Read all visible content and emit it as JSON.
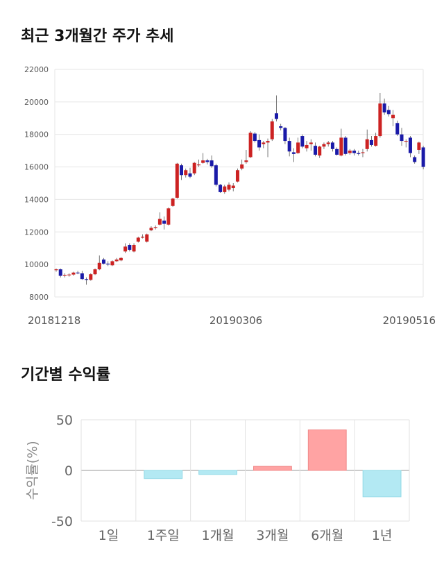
{
  "sections": {
    "price_title": "최근 3개월간 주가 추세",
    "returns_title": "기간별 수익률"
  },
  "colors": {
    "up": "#cc2222",
    "down": "#1a1aa8",
    "positive_bar": "#ffa3a3",
    "negative_bar": "#b3e9f3"
  },
  "chart_data": [
    {
      "type": "candlestick",
      "title": "",
      "ylim": [
        8000,
        22000
      ],
      "y_ticks": [
        "8000",
        "10000",
        "12000",
        "14000",
        "16000",
        "18000",
        "20000",
        "22000"
      ],
      "x_tick_labels": [
        "20181218",
        "20190306",
        "20190516"
      ],
      "x_tick_positions": [
        0,
        36,
        72
      ],
      "grid": true,
      "candles": [
        {
          "o": 9650,
          "h": 9750,
          "l": 9550,
          "c": 9700
        },
        {
          "o": 9700,
          "h": 9750,
          "l": 9200,
          "c": 9300
        },
        {
          "o": 9300,
          "h": 9450,
          "l": 9200,
          "c": 9350
        },
        {
          "o": 9350,
          "h": 9450,
          "l": 9250,
          "c": 9380
        },
        {
          "o": 9380,
          "h": 9550,
          "l": 9300,
          "c": 9500
        },
        {
          "o": 9500,
          "h": 9600,
          "l": 9400,
          "c": 9450
        },
        {
          "o": 9450,
          "h": 9600,
          "l": 9050,
          "c": 9100
        },
        {
          "o": 9100,
          "h": 9200,
          "l": 8750,
          "c": 9050
        },
        {
          "o": 9050,
          "h": 9450,
          "l": 9000,
          "c": 9400
        },
        {
          "o": 9400,
          "h": 9750,
          "l": 9350,
          "c": 9700
        },
        {
          "o": 9700,
          "h": 10550,
          "l": 9650,
          "c": 10100
        },
        {
          "o": 10300,
          "h": 10400,
          "l": 10000,
          "c": 10050
        },
        {
          "o": 10050,
          "h": 10200,
          "l": 9900,
          "c": 10000
        },
        {
          "o": 9950,
          "h": 10250,
          "l": 9900,
          "c": 10200
        },
        {
          "o": 10200,
          "h": 10400,
          "l": 10150,
          "c": 10300
        },
        {
          "o": 10250,
          "h": 10450,
          "l": 10200,
          "c": 10400
        },
        {
          "o": 10800,
          "h": 11300,
          "l": 10700,
          "c": 11100
        },
        {
          "o": 11200,
          "h": 11300,
          "l": 10800,
          "c": 10900
        },
        {
          "o": 10800,
          "h": 11300,
          "l": 10750,
          "c": 11200
        },
        {
          "o": 11400,
          "h": 11700,
          "l": 11350,
          "c": 11650
        },
        {
          "o": 11700,
          "h": 11850,
          "l": 11600,
          "c": 11700
        },
        {
          "o": 11400,
          "h": 11900,
          "l": 11350,
          "c": 11850
        },
        {
          "o": 12100,
          "h": 12350,
          "l": 12050,
          "c": 12250
        },
        {
          "o": 12250,
          "h": 12400,
          "l": 12150,
          "c": 12300
        },
        {
          "o": 12450,
          "h": 13200,
          "l": 12400,
          "c": 12800
        },
        {
          "o": 12700,
          "h": 12950,
          "l": 12150,
          "c": 12500
        },
        {
          "o": 12450,
          "h": 13500,
          "l": 12400,
          "c": 13450
        },
        {
          "o": 13600,
          "h": 14100,
          "l": 13550,
          "c": 14050
        },
        {
          "o": 14100,
          "h": 16250,
          "l": 14050,
          "c": 16200
        },
        {
          "o": 16100,
          "h": 16200,
          "l": 15200,
          "c": 15500
        },
        {
          "o": 15500,
          "h": 15900,
          "l": 15350,
          "c": 15800
        },
        {
          "o": 15600,
          "h": 15950,
          "l": 15300,
          "c": 15400
        },
        {
          "o": 15600,
          "h": 16300,
          "l": 15500,
          "c": 16250
        },
        {
          "o": 16100,
          "h": 16450,
          "l": 16000,
          "c": 16150
        },
        {
          "o": 16250,
          "h": 16850,
          "l": 16200,
          "c": 16400
        },
        {
          "o": 16400,
          "h": 16500,
          "l": 16150,
          "c": 16300
        },
        {
          "o": 16400,
          "h": 16700,
          "l": 15950,
          "c": 16050
        },
        {
          "o": 16100,
          "h": 16200,
          "l": 14800,
          "c": 14900
        },
        {
          "o": 14900,
          "h": 14950,
          "l": 14400,
          "c": 14450
        },
        {
          "o": 14450,
          "h": 14900,
          "l": 14350,
          "c": 14800
        },
        {
          "o": 14600,
          "h": 15050,
          "l": 14500,
          "c": 14900
        },
        {
          "o": 14700,
          "h": 15000,
          "l": 14500,
          "c": 14850
        },
        {
          "o": 15100,
          "h": 15900,
          "l": 15050,
          "c": 15800
        },
        {
          "o": 15900,
          "h": 16450,
          "l": 15800,
          "c": 16150
        },
        {
          "o": 16300,
          "h": 17050,
          "l": 16200,
          "c": 16400
        },
        {
          "o": 16600,
          "h": 18200,
          "l": 16550,
          "c": 18100
        },
        {
          "o": 18050,
          "h": 18150,
          "l": 17500,
          "c": 17600
        },
        {
          "o": 17650,
          "h": 18000,
          "l": 17000,
          "c": 17200
        },
        {
          "o": 17400,
          "h": 17600,
          "l": 17150,
          "c": 17500
        },
        {
          "o": 17500,
          "h": 17750,
          "l": 16600,
          "c": 17600
        },
        {
          "o": 17700,
          "h": 18950,
          "l": 17600,
          "c": 18800
        },
        {
          "o": 19300,
          "h": 20400,
          "l": 18800,
          "c": 18950
        },
        {
          "o": 18500,
          "h": 18650,
          "l": 18250,
          "c": 18400
        },
        {
          "o": 18400,
          "h": 18450,
          "l": 17400,
          "c": 17600
        },
        {
          "o": 17600,
          "h": 17800,
          "l": 16650,
          "c": 16950
        },
        {
          "o": 16900,
          "h": 17150,
          "l": 16300,
          "c": 16800
        },
        {
          "o": 16850,
          "h": 17800,
          "l": 16800,
          "c": 17500
        },
        {
          "o": 17900,
          "h": 18000,
          "l": 17150,
          "c": 17250
        },
        {
          "o": 17150,
          "h": 17600,
          "l": 16950,
          "c": 17350
        },
        {
          "o": 17400,
          "h": 17700,
          "l": 17000,
          "c": 17500
        },
        {
          "o": 17300,
          "h": 17500,
          "l": 16650,
          "c": 16750
        },
        {
          "o": 16700,
          "h": 17300,
          "l": 16550,
          "c": 17250
        },
        {
          "o": 17250,
          "h": 17500,
          "l": 17100,
          "c": 17400
        },
        {
          "o": 17400,
          "h": 17600,
          "l": 17250,
          "c": 17500
        },
        {
          "o": 17500,
          "h": 17600,
          "l": 16950,
          "c": 17100
        },
        {
          "o": 17100,
          "h": 17200,
          "l": 16700,
          "c": 16750
        },
        {
          "o": 16700,
          "h": 18350,
          "l": 16650,
          "c": 17800
        },
        {
          "o": 17800,
          "h": 17900,
          "l": 16700,
          "c": 16800
        },
        {
          "o": 16850,
          "h": 17100,
          "l": 16750,
          "c": 17000
        },
        {
          "o": 17000,
          "h": 17100,
          "l": 16700,
          "c": 16850
        },
        {
          "o": 16850,
          "h": 17000,
          "l": 16700,
          "c": 16800
        },
        {
          "o": 16850,
          "h": 17100,
          "l": 16600,
          "c": 16900
        },
        {
          "o": 17100,
          "h": 18300,
          "l": 16950,
          "c": 17700
        },
        {
          "o": 17650,
          "h": 17900,
          "l": 17250,
          "c": 17350
        },
        {
          "o": 17300,
          "h": 18100,
          "l": 17250,
          "c": 17900
        },
        {
          "o": 17900,
          "h": 20550,
          "l": 17800,
          "c": 19900
        },
        {
          "o": 19900,
          "h": 20200,
          "l": 19200,
          "c": 19350
        },
        {
          "o": 19500,
          "h": 19750,
          "l": 19100,
          "c": 19250
        },
        {
          "o": 19000,
          "h": 19500,
          "l": 18500,
          "c": 19200
        },
        {
          "o": 18700,
          "h": 18850,
          "l": 17900,
          "c": 18000
        },
        {
          "o": 18000,
          "h": 18400,
          "l": 17300,
          "c": 17600
        },
        {
          "o": 17550,
          "h": 17700,
          "l": 17200,
          "c": 17600
        },
        {
          "o": 17800,
          "h": 17900,
          "l": 16600,
          "c": 16850
        },
        {
          "o": 16600,
          "h": 16700,
          "l": 16200,
          "c": 16300
        },
        {
          "o": 17050,
          "h": 17550,
          "l": 16800,
          "c": 17500
        },
        {
          "o": 17200,
          "h": 17300,
          "l": 15850,
          "c": 16000
        }
      ]
    },
    {
      "type": "bar",
      "title": "",
      "categories": [
        "1일",
        "1주일",
        "1개월",
        "3개월",
        "6개월",
        "1년"
      ],
      "values": [
        0,
        -8,
        -4,
        4,
        40,
        -26
      ],
      "ylabel": "수익률(%)",
      "ylim": [
        -50,
        50
      ],
      "y_ticks": [
        "-50",
        "0",
        "50"
      ],
      "grid": true
    }
  ]
}
